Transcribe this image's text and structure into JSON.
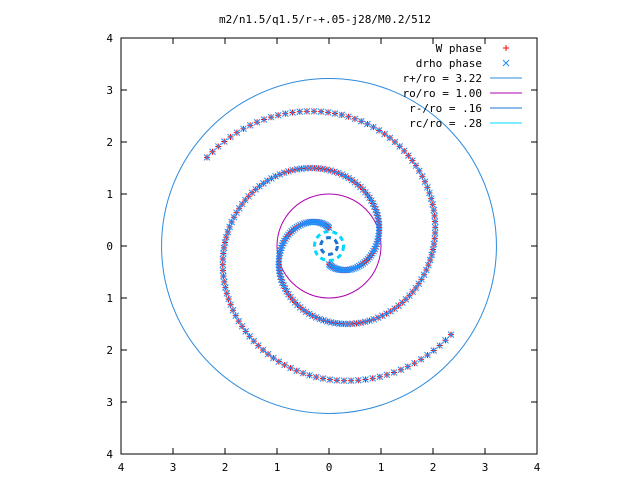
{
  "chart_data": {
    "type": "scatter",
    "title": "m2/n1.5/q1.5/r-+.05-j28/M0.2/512",
    "xlabel": "",
    "ylabel": "",
    "xlim": [
      -4,
      4
    ],
    "ylim": [
      -4,
      4
    ],
    "x_tick_labels": [
      "4",
      "3",
      "2",
      "1",
      "0",
      "1",
      "2",
      "3",
      "4"
    ],
    "y_tick_labels": [
      "4",
      "3",
      "2",
      "1",
      "0",
      "1",
      "2",
      "3",
      "4"
    ],
    "grid": false,
    "legend_position": "top-right",
    "series": [
      {
        "name": "W phase",
        "kind": "points",
        "marker": "plus",
        "color": "#ff0000",
        "arms": [
          {
            "r_start": 0.35,
            "r_end": 2.9,
            "theta_start_deg": 90,
            "turns": 1.15
          },
          {
            "r_start": 0.35,
            "r_end": 2.9,
            "theta_start_deg": 270,
            "turns": 1.15
          }
        ]
      },
      {
        "name": "drho phase",
        "kind": "points",
        "marker": "cross",
        "color": "#1e90ff",
        "arms": [
          {
            "r_start": 0.35,
            "r_end": 2.9,
            "theta_start_deg": 90,
            "turns": 1.15
          },
          {
            "r_start": 0.35,
            "r_end": 2.9,
            "theta_start_deg": 270,
            "turns": 1.15
          }
        ]
      },
      {
        "name": "r+/ro = 3.22",
        "kind": "circle",
        "radius": 3.22,
        "color": "#2e8bdc"
      },
      {
        "name": "ro/ro = 1.00",
        "kind": "circle",
        "radius": 1.0,
        "color": "#b000b0"
      },
      {
        "name": "r-/ro = .16",
        "kind": "circle",
        "radius": 0.16,
        "color": "#1e74d0"
      },
      {
        "name": "rc/ro = .28",
        "kind": "circle",
        "radius": 0.28,
        "color": "#00d8ff"
      }
    ]
  }
}
